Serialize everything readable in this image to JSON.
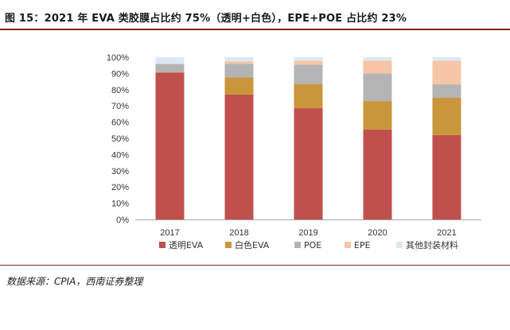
{
  "figure": {
    "title": "图 15：2021 年 EVA 类胶膜占比约 75%（透明+白色），EPE+POE 占比约 23%",
    "source": "数据来源：CPIA，西南证券整理"
  },
  "chart_data": {
    "type": "bar",
    "stacked": true,
    "categories": [
      "2017",
      "2018",
      "2019",
      "2020",
      "2021"
    ],
    "series": [
      {
        "name": "透明EVA",
        "color": "#c0504d",
        "values": [
          90.6,
          77.0,
          68.6,
          55.5,
          52.0
        ]
      },
      {
        "name": "白色EVA",
        "color": "#c9963b",
        "values": [
          0,
          10.5,
          14.9,
          17.5,
          23.0
        ]
      },
      {
        "name": "POE",
        "color": "#b4b4b4",
        "values": [
          5.3,
          8.5,
          11.9,
          17.0,
          8.3
        ]
      },
      {
        "name": "EPE",
        "color": "#f6c5a8",
        "values": [
          0,
          1.5,
          2.5,
          8.0,
          14.6
        ]
      },
      {
        "name": "其他封装材料",
        "color": "#dbe8f3",
        "values": [
          4.1,
          2.5,
          2.1,
          2.0,
          2.1
        ]
      }
    ],
    "y_ticks": [
      "100%",
      "90%",
      "80%",
      "70%",
      "60%",
      "50%",
      "40%",
      "30%",
      "20%",
      "10%",
      "0%"
    ],
    "ylim": [
      0,
      100
    ],
    "grid": false,
    "legend_position": "bottom"
  }
}
